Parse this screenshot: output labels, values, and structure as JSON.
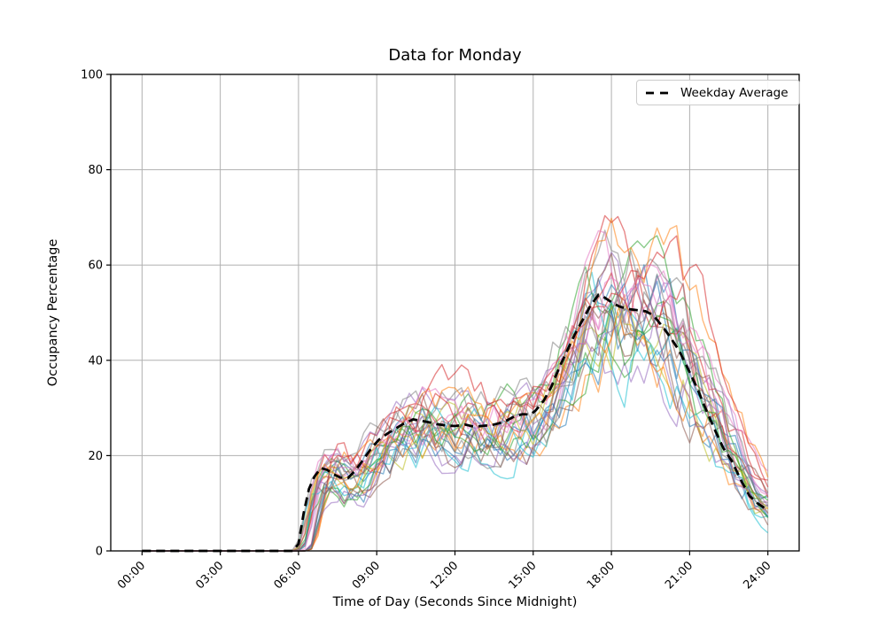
{
  "figure": {
    "title": "Data for Monday",
    "xlabel": "Time of Day (Seconds Since Midnight)",
    "ylabel": "Occupancy Percentage",
    "legend": {
      "label": "Weekday Average"
    }
  },
  "chart_data": {
    "type": "line",
    "title": "Data for Monday",
    "xlabel": "Time of Day (Seconds Since Midnight)",
    "ylabel": "Occupancy Percentage",
    "x_unit": "hours_since_midnight",
    "xlim": [
      -1.2,
      25.2
    ],
    "ylim": [
      0,
      100
    ],
    "x_ticks": {
      "hours": [
        0,
        3,
        6,
        9,
        12,
        15,
        18,
        21,
        24
      ],
      "labels": [
        "00:00",
        "03:00",
        "06:00",
        "09:00",
        "12:00",
        "15:00",
        "18:00",
        "21:00",
        "24:00"
      ]
    },
    "y_ticks": [
      0,
      20,
      40,
      60,
      80,
      100
    ],
    "grid": true,
    "legend_position": "upper right",
    "colors": {
      "average": "#000000",
      "grid": "#b0b0b0",
      "spine": "#000000",
      "background": "#ffffff"
    },
    "average_series": {
      "name": "Weekday Average",
      "line_style": "dashed",
      "stroke_width": 2.8,
      "dash_pattern": "10 6",
      "points": [
        [
          0.0,
          0
        ],
        [
          1.0,
          0
        ],
        [
          2.0,
          0
        ],
        [
          3.0,
          0
        ],
        [
          4.0,
          0
        ],
        [
          5.0,
          0
        ],
        [
          5.8,
          0
        ],
        [
          6.0,
          1.5
        ],
        [
          6.2,
          8.0
        ],
        [
          6.4,
          13.0
        ],
        [
          6.6,
          15.5
        ],
        [
          6.85,
          17.4
        ],
        [
          7.1,
          17.0
        ],
        [
          7.3,
          16.2
        ],
        [
          7.6,
          15.4
        ],
        [
          7.9,
          15.3
        ],
        [
          8.2,
          17.0
        ],
        [
          8.5,
          19.3
        ],
        [
          8.8,
          21.6
        ],
        [
          9.1,
          23.4
        ],
        [
          9.4,
          24.6
        ],
        [
          9.7,
          25.6
        ],
        [
          10.0,
          26.6
        ],
        [
          10.4,
          27.6
        ],
        [
          10.7,
          27.3
        ],
        [
          11.0,
          27.0
        ],
        [
          11.3,
          26.6
        ],
        [
          11.7,
          26.3
        ],
        [
          12.0,
          26.2
        ],
        [
          12.4,
          26.5
        ],
        [
          12.7,
          26.1
        ],
        [
          13.0,
          26.2
        ],
        [
          13.4,
          26.4
        ],
        [
          13.7,
          26.8
        ],
        [
          14.0,
          27.4
        ],
        [
          14.3,
          28.3
        ],
        [
          14.6,
          28.7
        ],
        [
          14.9,
          28.6
        ],
        [
          15.1,
          29.5
        ],
        [
          15.4,
          31.5
        ],
        [
          15.7,
          34.5
        ],
        [
          16.0,
          38.5
        ],
        [
          16.3,
          42.0
        ],
        [
          16.6,
          45.5
        ],
        [
          16.9,
          48.5
        ],
        [
          17.2,
          51.5
        ],
        [
          17.5,
          53.7
        ],
        [
          17.7,
          53.3
        ],
        [
          18.0,
          52.2
        ],
        [
          18.3,
          51.3
        ],
        [
          18.6,
          50.8
        ],
        [
          19.0,
          50.5
        ],
        [
          19.3,
          50.3
        ],
        [
          19.6,
          49.5
        ],
        [
          20.0,
          46.8
        ],
        [
          20.3,
          44.5
        ],
        [
          20.6,
          42.0
        ],
        [
          21.0,
          37.5
        ],
        [
          21.3,
          34.0
        ],
        [
          21.6,
          30.0
        ],
        [
          22.0,
          25.0
        ],
        [
          22.3,
          21.5
        ],
        [
          22.6,
          19.0
        ],
        [
          23.0,
          14.5
        ],
        [
          23.3,
          11.5
        ],
        [
          23.6,
          10.0
        ],
        [
          24.0,
          8.5
        ]
      ]
    },
    "ensemble": {
      "description": "Individual Monday occupancy traces (semi-transparent)",
      "count": 28,
      "step_hours": 0.25,
      "alpha": 0.55,
      "stroke_width": 1.4,
      "seed": 42,
      "scale_range": [
        0.78,
        1.23
      ],
      "time_shift_range_hours": [
        0.0,
        0.7
      ],
      "noise": {
        "persistence": 0.7,
        "base": 2.0,
        "proportional": 0.22
      },
      "palette": [
        "#1f77b4",
        "#ff7f0e",
        "#2ca02c",
        "#d62728",
        "#9467bd",
        "#8c564b",
        "#e377c2",
        "#7f7f7f",
        "#bcbd22",
        "#17becf"
      ]
    }
  }
}
